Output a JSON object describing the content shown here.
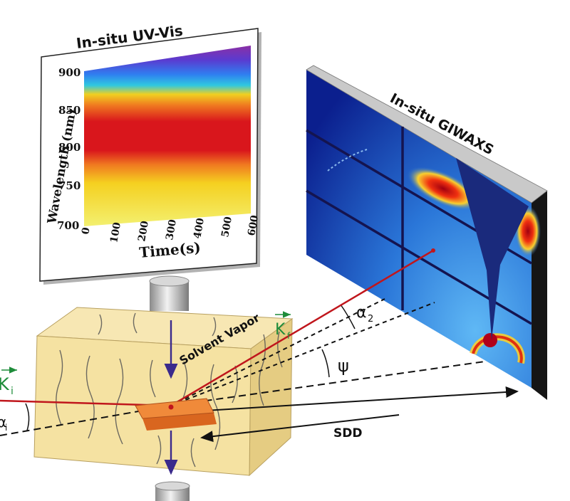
{
  "uvvis": {
    "title": "In-situ UV-Vis",
    "y_label": "Wavelength (nm)",
    "x_label": "Time(s)",
    "y_ticks": [
      "900",
      "850",
      "800",
      "750",
      "700"
    ],
    "x_ticks": [
      "0",
      "100",
      "200",
      "300",
      "400",
      "500",
      "600"
    ]
  },
  "giwaxs": {
    "title": "In-situ GIWAXS"
  },
  "labels": {
    "solvent_vapor": "Solvent Vapor",
    "k_incident": "K",
    "k_incident_sub": "i",
    "k_final": "K",
    "k_final_sub": "f",
    "alpha_i": "α",
    "alpha_i_sub": "i",
    "alpha_2": "α",
    "alpha_2_sub": "2",
    "psi": "ψ",
    "sdd": "SDD"
  },
  "colors": {
    "beam": "#c0161c",
    "vector_label": "#1e8c3a",
    "sample": "#e8782f",
    "chamber": "#f5e2a2",
    "flow_arrow": "#3a2a8c"
  }
}
